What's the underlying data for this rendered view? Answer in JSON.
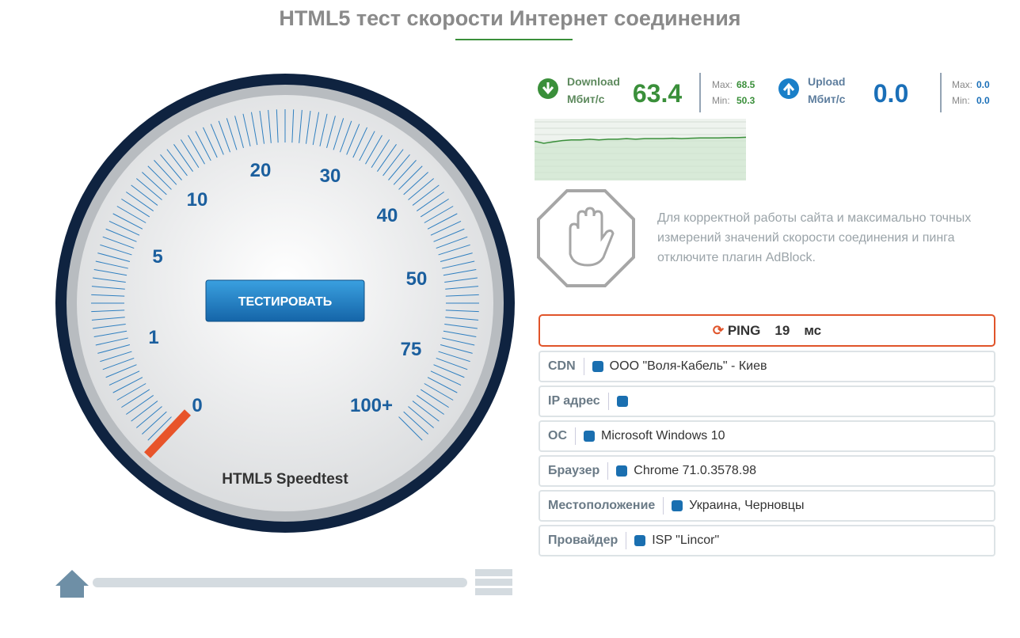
{
  "header": {
    "title": "HTML5 тест скорости Интернет соединения"
  },
  "gauge": {
    "scale_labels": [
      "0",
      "1",
      "5",
      "10",
      "20",
      "30",
      "40",
      "50",
      "75",
      "100+"
    ],
    "button": "ТЕСТИРОВАТЬ",
    "caption": "HTML5 Speedtest"
  },
  "download": {
    "label": "Download",
    "unit": "Мбит/с",
    "value": "63.4",
    "max_label": "Max:",
    "max": "68.5",
    "min_label": "Min:",
    "min": "50.3"
  },
  "upload": {
    "label": "Upload",
    "unit": "Мбит/с",
    "value": "0.0",
    "max_label": "Max:",
    "max": "0.0",
    "min_label": "Min:",
    "min": "0.0"
  },
  "speed_history": {
    "values": [
      59,
      56,
      58,
      60,
      61,
      61,
      62,
      61,
      62,
      62,
      63,
      62,
      63,
      63,
      63,
      63.5,
      63,
      63.5,
      64,
      64,
      64,
      64.5,
      64.5,
      65
    ]
  },
  "adblock": {
    "message": "Для корректной работы сайта и максимально точных измерений значений скорости соединения и пинга отключите плагин AdBlock."
  },
  "ping": {
    "label": "PING",
    "value": "19",
    "unit": "мс"
  },
  "info": [
    {
      "label": "CDN",
      "value": "ООО \"Воля-Кабель\" - Киев"
    },
    {
      "label": "IP адрес"
    },
    {
      "label": "ОС",
      "value": "Microsoft Windows 10"
    },
    {
      "label": "Браузер",
      "value": "Chrome 71.0.3578.98"
    },
    {
      "label": "Местоположение",
      "value": "Украина, Черновцы"
    },
    {
      "label": "Провайдер",
      "value": "ISP \"Lincor\""
    }
  ]
}
